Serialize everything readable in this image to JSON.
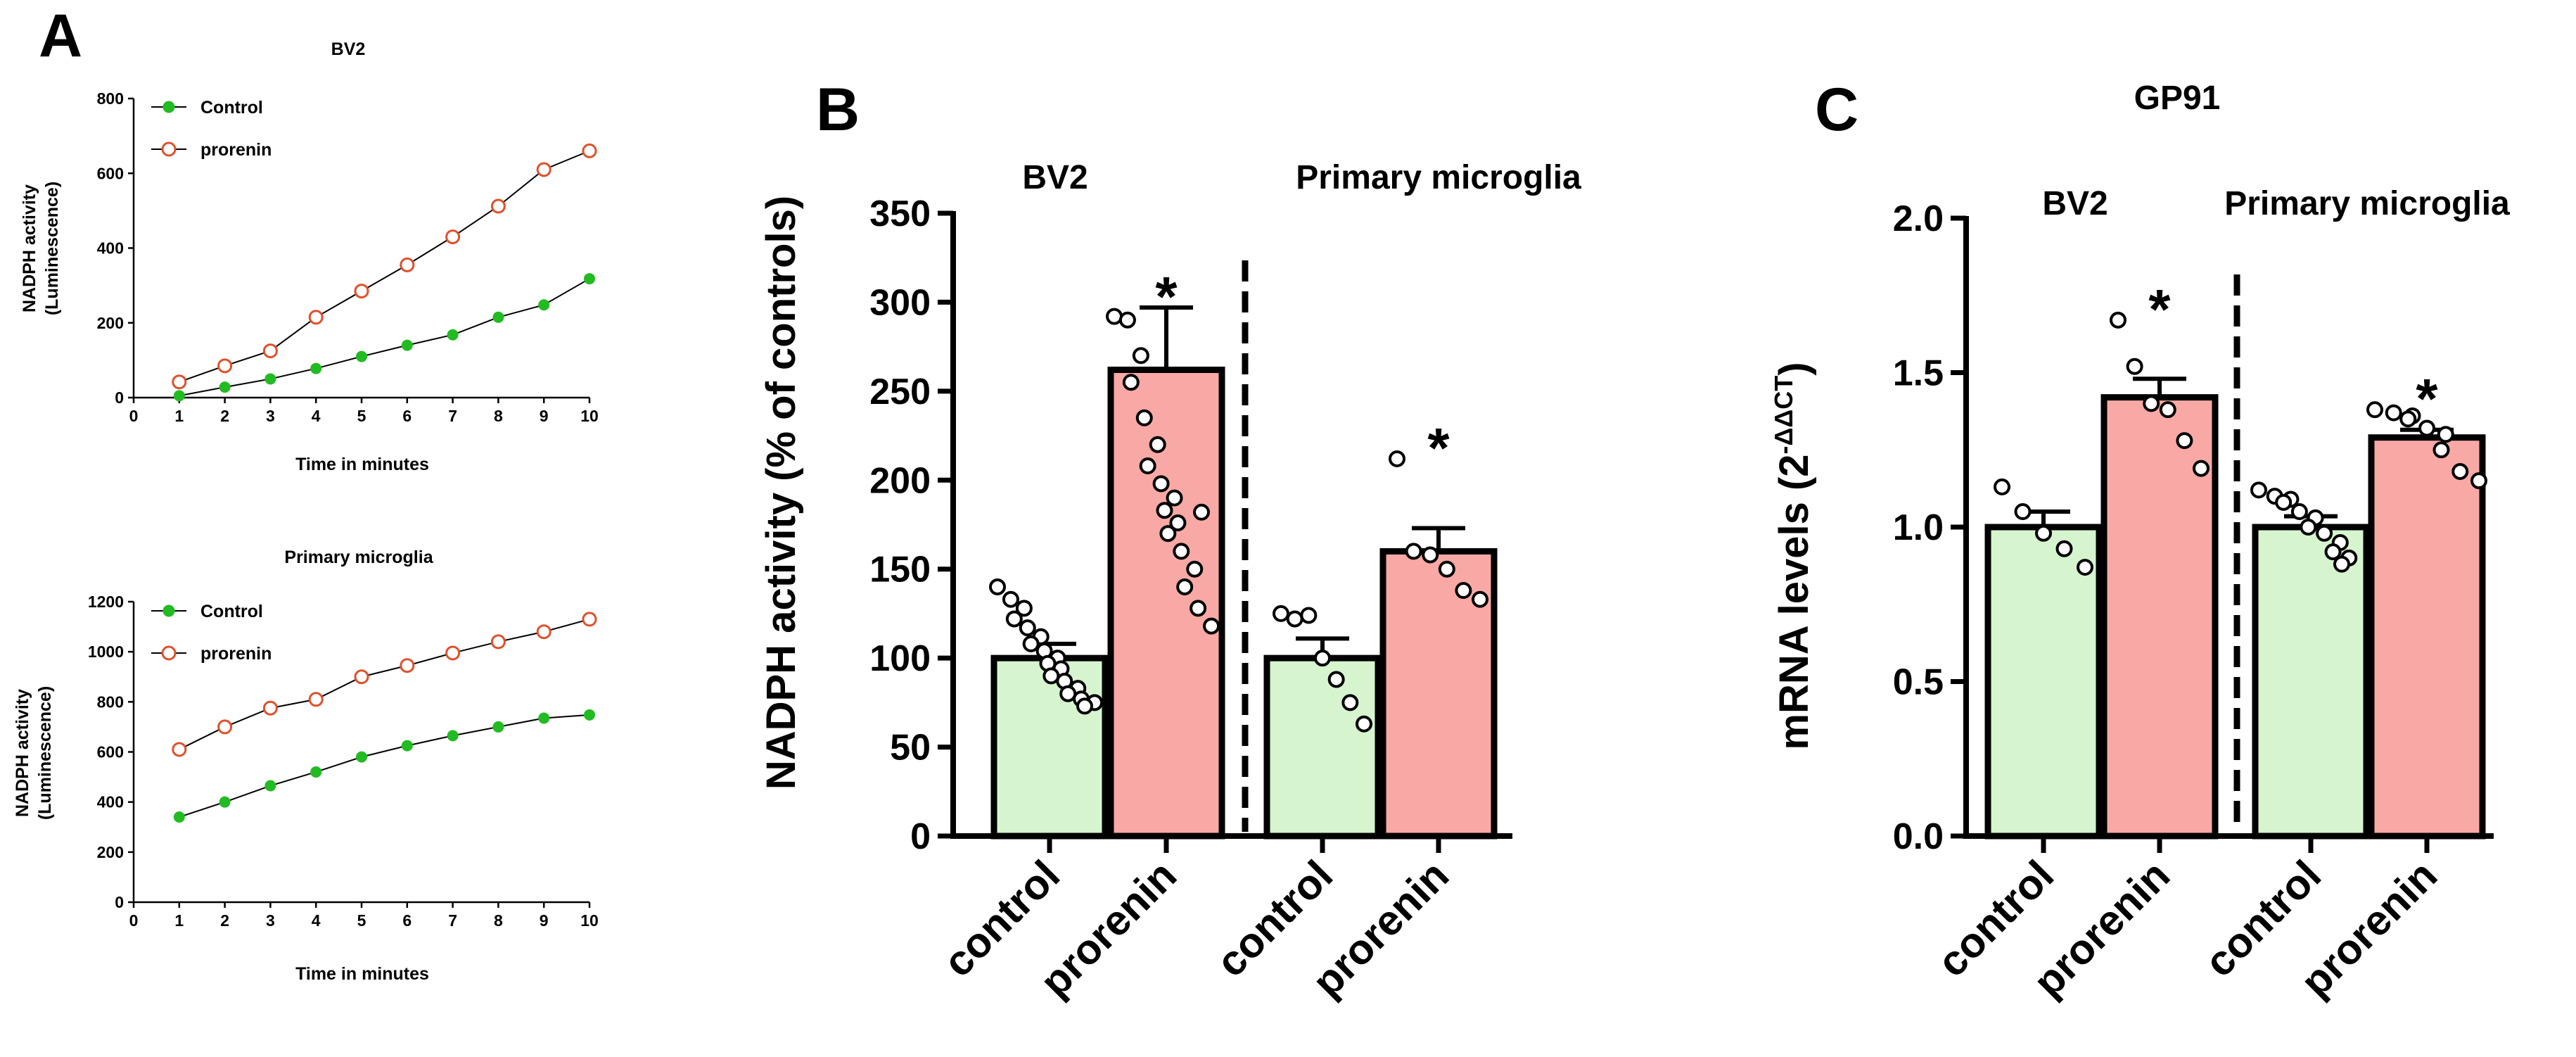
{
  "panel_letters": {
    "a": "A",
    "b": "B",
    "c": "C"
  },
  "colors": {
    "control_line": "#22bb22",
    "prorenin_line": "#e0502a",
    "control_fill": "#d6f5cf",
    "prorenin_fill": "#f8a9a5"
  },
  "chart_data": [
    {
      "id": "A1",
      "type": "line",
      "title": "BV2",
      "xlabel": "Time in minutes",
      "ylabel": [
        "NADPH activity",
        "(Luminescence)"
      ],
      "xlim": [
        0,
        10
      ],
      "ylim": [
        0,
        800
      ],
      "xticks": [
        "0",
        "1",
        "2",
        "3",
        "4",
        "5",
        "6",
        "7",
        "8",
        "9",
        "10"
      ],
      "yticks": [
        "0",
        "200",
        "400",
        "600",
        "800"
      ],
      "legend_position": "top-left",
      "series": [
        {
          "name": "Control",
          "x": [
            1,
            2,
            3,
            4,
            5,
            6,
            7,
            8,
            9,
            10
          ],
          "values": [
            5,
            28,
            50,
            78,
            110,
            140,
            168,
            215,
            248,
            318
          ]
        },
        {
          "name": "prorenin",
          "x": [
            1,
            2,
            3,
            4,
            5,
            6,
            7,
            8,
            9,
            10
          ],
          "values": [
            42,
            85,
            125,
            215,
            285,
            355,
            430,
            512,
            610,
            660
          ]
        }
      ]
    },
    {
      "id": "A2",
      "type": "line",
      "title": "Primary microglia",
      "xlabel": "Time in minutes",
      "ylabel": [
        "NADPH activity",
        "(Luminescence)"
      ],
      "xlim": [
        0,
        10
      ],
      "ylim": [
        0,
        1200
      ],
      "xticks": [
        "0",
        "1",
        "2",
        "3",
        "4",
        "5",
        "6",
        "7",
        "8",
        "9",
        "10"
      ],
      "yticks": [
        "0",
        "200",
        "400",
        "600",
        "800",
        "1000",
        "1200"
      ],
      "legend_position": "top-left",
      "series": [
        {
          "name": "Control",
          "x": [
            1,
            2,
            3,
            4,
            5,
            6,
            7,
            8,
            9,
            10
          ],
          "values": [
            340,
            400,
            465,
            520,
            580,
            625,
            665,
            700,
            735,
            748
          ]
        },
        {
          "name": "prorenin",
          "x": [
            1,
            2,
            3,
            4,
            5,
            6,
            7,
            8,
            9,
            10
          ],
          "values": [
            610,
            700,
            775,
            810,
            900,
            945,
            995,
            1040,
            1080,
            1130
          ]
        }
      ]
    },
    {
      "id": "B",
      "type": "bar",
      "ylabel": "NADPH activity (% of controls)",
      "ylim": [
        0,
        350
      ],
      "yticks": [
        "0",
        "50",
        "100",
        "150",
        "200",
        "250",
        "300",
        "350"
      ],
      "groups": [
        "BV2",
        "Primary microglia"
      ],
      "categories": [
        "control",
        "prorenin",
        "control",
        "prorenin"
      ],
      "values": [
        100,
        262,
        100,
        160
      ],
      "errors": [
        8,
        35,
        11,
        13
      ],
      "significance": [
        "",
        "*",
        "",
        "*"
      ],
      "points": [
        [
          140,
          133,
          128,
          122,
          117,
          112,
          108,
          104,
          100,
          97,
          94,
          90,
          87,
          83,
          80,
          77,
          75,
          73
        ],
        [
          292,
          290,
          270,
          255,
          235,
          220,
          208,
          198,
          190,
          183,
          176,
          170,
          160,
          150,
          140,
          128,
          118,
          182
        ],
        [
          125,
          122,
          124,
          100,
          88,
          75,
          63
        ],
        [
          212,
          160,
          158,
          150,
          138,
          133
        ]
      ]
    },
    {
      "id": "C",
      "type": "bar",
      "title": "GP91",
      "ylabel": "mRNA levels (2",
      "ylabel_sup": "-ΔΔCT",
      "ylabel_end": ")",
      "ylim": [
        0,
        2.0
      ],
      "yticks": [
        "0.0",
        "0.5",
        "1.0",
        "1.5",
        "2.0"
      ],
      "groups": [
        "BV2",
        "Primary microglia"
      ],
      "categories": [
        "control",
        "prorenin",
        "control",
        "prorenin"
      ],
      "values": [
        1.0,
        1.42,
        1.0,
        1.29
      ],
      "errors": [
        0.05,
        0.06,
        0.035,
        0.025
      ],
      "significance": [
        "",
        "*",
        "",
        "*"
      ],
      "points": [
        [
          1.13,
          1.05,
          0.98,
          0.93,
          0.87
        ],
        [
          1.67,
          1.52,
          1.4,
          1.38,
          1.28,
          1.19
        ],
        [
          1.12,
          1.1,
          1.09,
          1.08,
          1.05,
          1.03,
          1.0,
          0.98,
          0.95,
          0.92,
          0.9,
          0.88
        ],
        [
          1.38,
          1.37,
          1.36,
          1.35,
          1.32,
          1.3,
          1.25,
          1.18,
          1.15
        ]
      ]
    }
  ]
}
